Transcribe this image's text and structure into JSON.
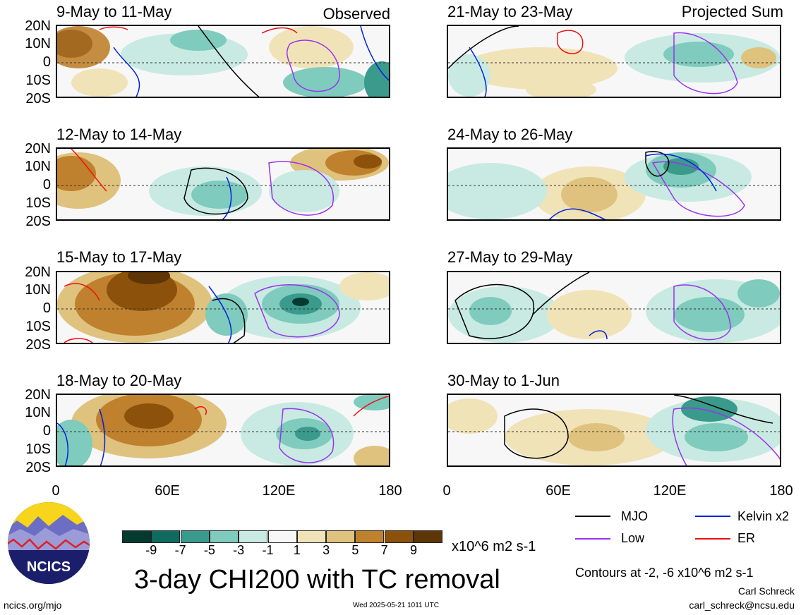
{
  "panels": [
    {
      "title": "9-May to 11-May",
      "tag": "Observed"
    },
    {
      "title": "12-May to 14-May",
      "tag": ""
    },
    {
      "title": "15-May to 17-May",
      "tag": ""
    },
    {
      "title": "18-May to 20-May",
      "tag": ""
    },
    {
      "title": "21-May to 23-May",
      "tag": "Projected Sum"
    },
    {
      "title": "24-May to 26-May",
      "tag": ""
    },
    {
      "title": "27-May to 29-May",
      "tag": ""
    },
    {
      "title": "30-May to 1-Jun",
      "tag": ""
    }
  ],
  "lat_labels": [
    "20N",
    "10N",
    "0",
    "10S",
    "20S"
  ],
  "lon_labels": [
    "0",
    "60E",
    "120E",
    "180"
  ],
  "colorbar": {
    "labels": [
      "-9",
      "-7",
      "-5",
      "-3",
      "-1",
      "1",
      "3",
      "5",
      "7",
      "9"
    ],
    "colors": [
      "#053a31",
      "#0e6b5e",
      "#3a9a8c",
      "#7fcbbd",
      "#c8eae2",
      "#f7f7f7",
      "#f1e3b8",
      "#dfc27d",
      "#bf812d",
      "#8c510a",
      "#5e3507"
    ],
    "units": "x10^6 m2 s-1"
  },
  "legend": {
    "items": [
      {
        "label": "MJO",
        "color": "#000000"
      },
      {
        "label": "Kelvin x2",
        "color": "#0022dd"
      },
      {
        "label": "Low",
        "color": "#9933ee"
      },
      {
        "label": "ER",
        "color": "#ee1111"
      }
    ],
    "contours_note": "Contours at -2, -6 x10^6 m2 s-1"
  },
  "title": "3-day CHI200 with TC removal",
  "logo_text": "NCICS",
  "footer": {
    "url": "ncics.org/mjo",
    "timestamp": "Wed 2025-05-21 1011 UTC",
    "author": "Carl Schreck",
    "email": "carl_schreck@ncsu.edu"
  }
}
